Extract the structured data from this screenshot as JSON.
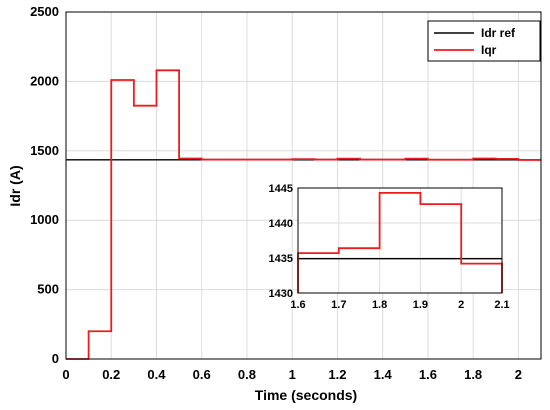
{
  "chart_data": [
    {
      "id": "main",
      "type": "line",
      "xlabel": "Time (seconds)",
      "ylabel": "Idr (A)",
      "xlim": [
        0,
        2.1
      ],
      "ylim": [
        0,
        2500
      ],
      "xticks": [
        0,
        0.2,
        0.4,
        0.6,
        0.8,
        1,
        1.2,
        1.4,
        1.6,
        1.8,
        2
      ],
      "yticks": [
        0,
        500,
        1000,
        1500,
        2000,
        2500
      ],
      "grid": true,
      "legend_position": "top-right",
      "series": [
        {
          "name": "Idr ref",
          "color": "#000000",
          "points": [
            [
              0,
              1435
            ],
            [
              2.1,
              1435
            ]
          ]
        },
        {
          "name": "Iqr",
          "color": "#ee1c1c",
          "points": [
            [
              0,
              0
            ],
            [
              0.1,
              0
            ],
            [
              0.1,
              200
            ],
            [
              0.2,
              200
            ],
            [
              0.2,
              2010
            ],
            [
              0.3,
              2010
            ],
            [
              0.3,
              1825
            ],
            [
              0.4,
              1825
            ],
            [
              0.4,
              2080
            ],
            [
              0.5,
              2080
            ],
            [
              0.5,
              1444
            ],
            [
              0.6,
              1444
            ],
            [
              0.6,
              1437
            ],
            [
              1.0,
              1437
            ],
            [
              1.0,
              1440
            ],
            [
              1.1,
              1440
            ],
            [
              1.1,
              1437
            ],
            [
              1.2,
              1437
            ],
            [
              1.2,
              1443
            ],
            [
              1.3,
              1443
            ],
            [
              1.3,
              1437
            ],
            [
              1.5,
              1437
            ],
            [
              1.5,
              1443
            ],
            [
              1.6,
              1443
            ],
            [
              1.6,
              1436
            ],
            [
              1.8,
              1436
            ],
            [
              1.8,
              1444
            ],
            [
              1.9,
              1444
            ],
            [
              1.9,
              1442
            ],
            [
              2.0,
              1442
            ],
            [
              2.0,
              1434
            ],
            [
              2.1,
              1434
            ]
          ]
        }
      ]
    },
    {
      "id": "inset",
      "type": "line",
      "xlim": [
        1.6,
        2.1
      ],
      "ylim": [
        1430,
        1445
      ],
      "xticks": [
        1.6,
        1.7,
        1.8,
        1.9,
        2,
        2.1
      ],
      "yticks": [
        1430,
        1435,
        1440,
        1445
      ],
      "grid": true,
      "series": [
        {
          "name": "Idr ref",
          "color": "#000000",
          "points": [
            [
              1.6,
              1434.9
            ],
            [
              2.1,
              1434.9
            ]
          ]
        },
        {
          "name": "Iqr",
          "color": "#ee1c1c",
          "points": [
            [
              1.6,
              1430
            ],
            [
              1.6,
              1435.7
            ],
            [
              1.7,
              1435.7
            ],
            [
              1.7,
              1436.4
            ],
            [
              1.8,
              1436.4
            ],
            [
              1.8,
              1444.3
            ],
            [
              1.9,
              1444.3
            ],
            [
              1.9,
              1442.7
            ],
            [
              2.0,
              1442.7
            ],
            [
              2.0,
              1434.2
            ],
            [
              2.1,
              1434.2
            ],
            [
              2.1,
              1430
            ]
          ]
        }
      ]
    }
  ]
}
